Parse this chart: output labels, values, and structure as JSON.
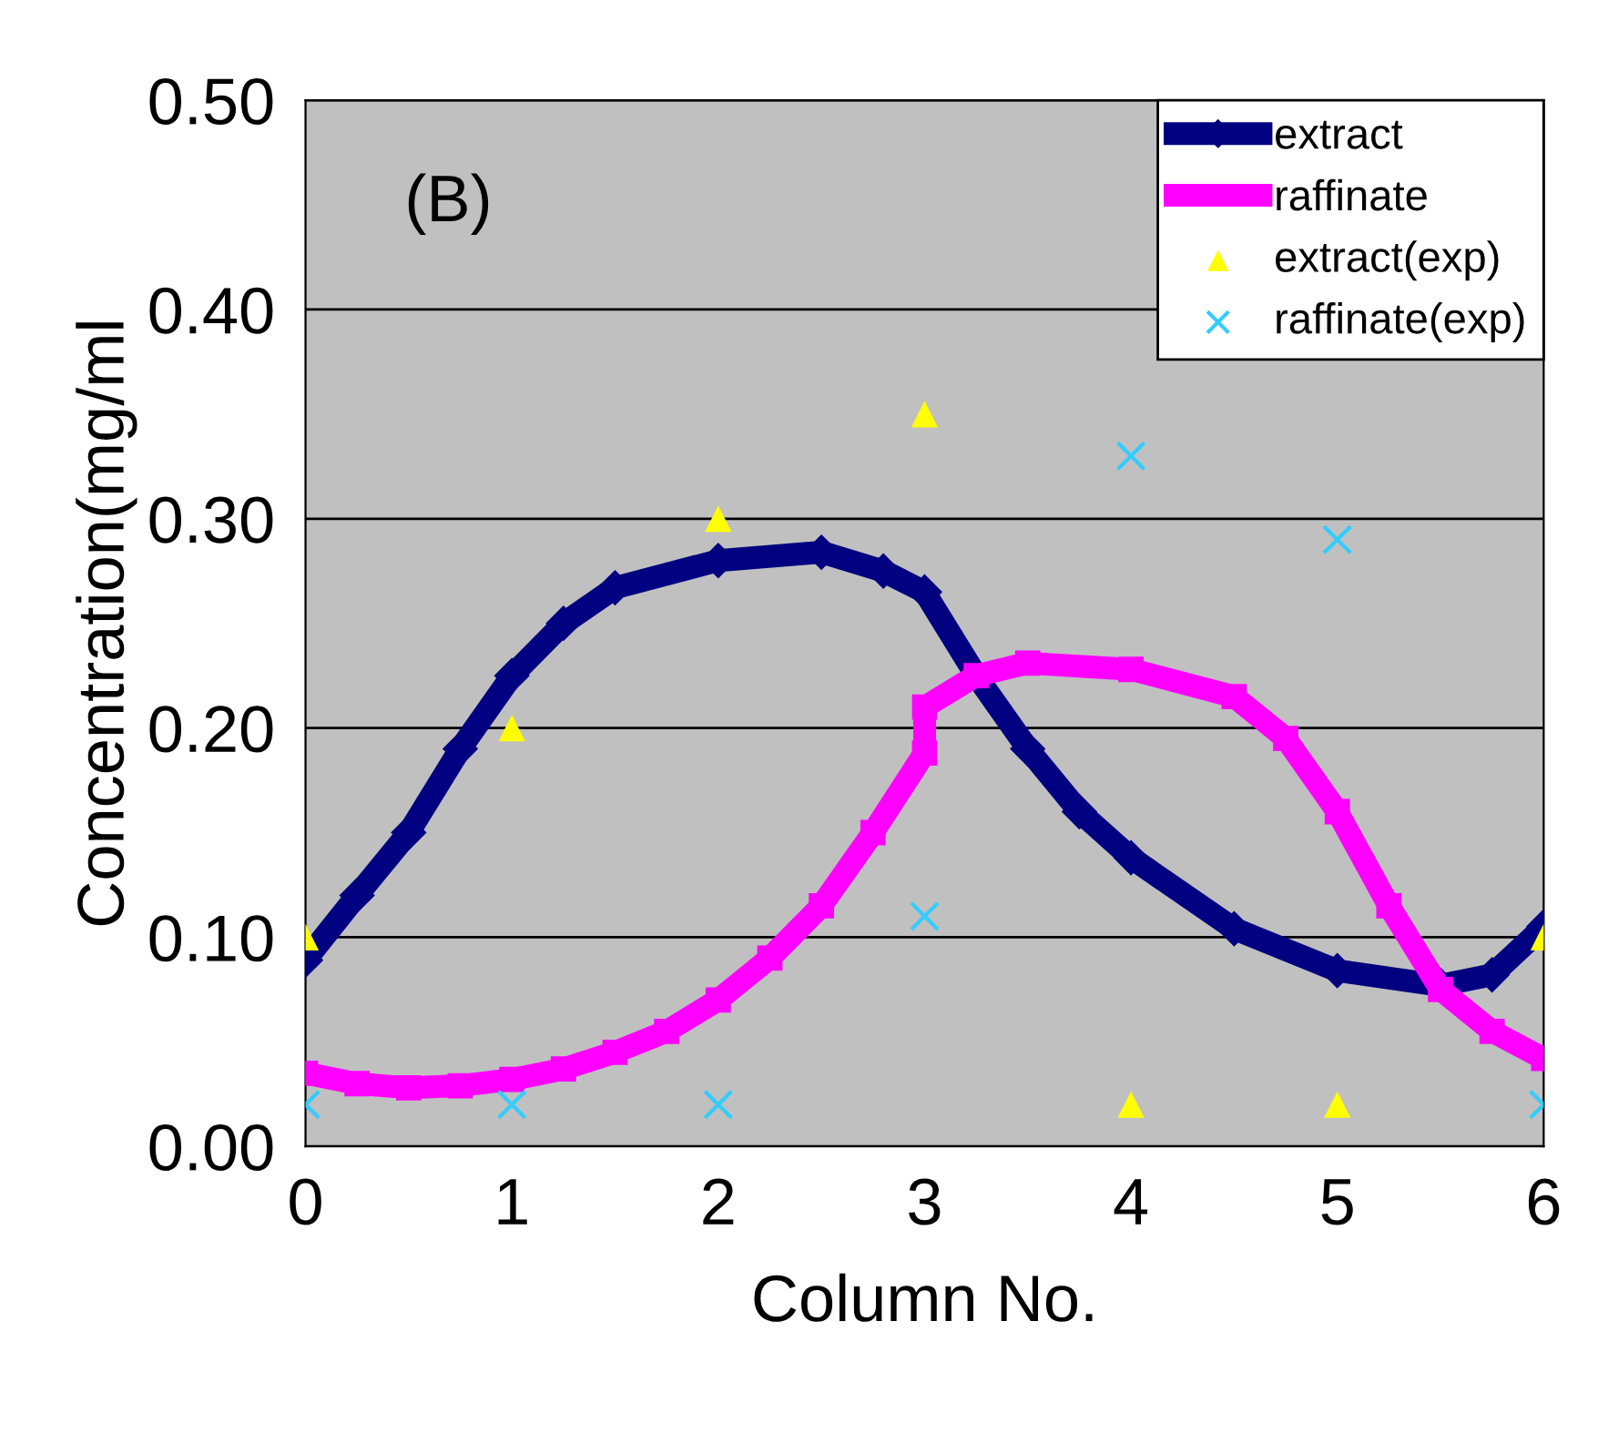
{
  "chart_data": {
    "type": "line",
    "xlabel": "Column No.",
    "ylabel": "Concentration(mg/ml",
    "annotations": [
      "(B)"
    ],
    "xlim": [
      0,
      6
    ],
    "xticks": [
      0,
      1,
      2,
      3,
      4,
      5,
      6
    ],
    "ylim": [
      0,
      0.5
    ],
    "yticks": [
      {
        "value": 0,
        "label": "0.00"
      },
      {
        "value": 0.1,
        "label": "0.10"
      },
      {
        "value": 0.2,
        "label": "0.20"
      },
      {
        "value": 0.3,
        "label": "0.30"
      },
      {
        "value": 0.4,
        "label": "0.40"
      },
      {
        "value": 0.5,
        "label": "0.50"
      }
    ],
    "grid": "y",
    "legend": "top right",
    "series": [
      {
        "name": "extract",
        "marker": "diamond",
        "color": "#000080",
        "x": [
          0,
          0.25,
          0.5,
          0.75,
          1,
          1.25,
          1.5,
          2,
          2.5,
          2.8,
          3,
          3.25,
          3.5,
          3.75,
          4,
          4.5,
          5,
          5.5,
          5.75,
          6
        ],
        "values": [
          0.089,
          0.12,
          0.15,
          0.19,
          0.225,
          0.25,
          0.267,
          0.28,
          0.284,
          0.275,
          0.265,
          0.225,
          0.19,
          0.16,
          0.138,
          0.104,
          0.084,
          0.077,
          0.082,
          0.105
        ]
      },
      {
        "name": "raffinate",
        "marker": "square",
        "color": "#ff00ff",
        "x": [
          0,
          0.25,
          0.5,
          0.75,
          1,
          1.25,
          1.5,
          1.75,
          2,
          2.25,
          2.5,
          2.75,
          3,
          3.0,
          3.25,
          3.5,
          4,
          4.5,
          4.75,
          5,
          5.25,
          5.5,
          5.75,
          6
        ],
        "values": [
          0.035,
          0.03,
          0.028,
          0.029,
          0.032,
          0.037,
          0.045,
          0.055,
          0.07,
          0.09,
          0.115,
          0.15,
          0.188,
          0.21,
          0.225,
          0.231,
          0.228,
          0.215,
          0.195,
          0.16,
          0.115,
          0.075,
          0.055,
          0.042
        ]
      },
      {
        "name": "extract(exp)",
        "type": "scatter",
        "marker": "triangle",
        "color": "#ffff00",
        "x": [
          0,
          1,
          2,
          3,
          4,
          5,
          6
        ],
        "values": [
          0.1,
          0.2,
          0.3,
          0.35,
          0.02,
          0.02,
          0.1
        ]
      },
      {
        "name": "raffinate(exp)",
        "type": "scatter",
        "marker": "cross",
        "color": "#33ccff",
        "x": [
          0,
          1,
          2,
          3,
          4,
          5,
          6
        ],
        "values": [
          0.02,
          0.02,
          0.02,
          0.11,
          0.33,
          0.29,
          0.02
        ]
      }
    ]
  }
}
